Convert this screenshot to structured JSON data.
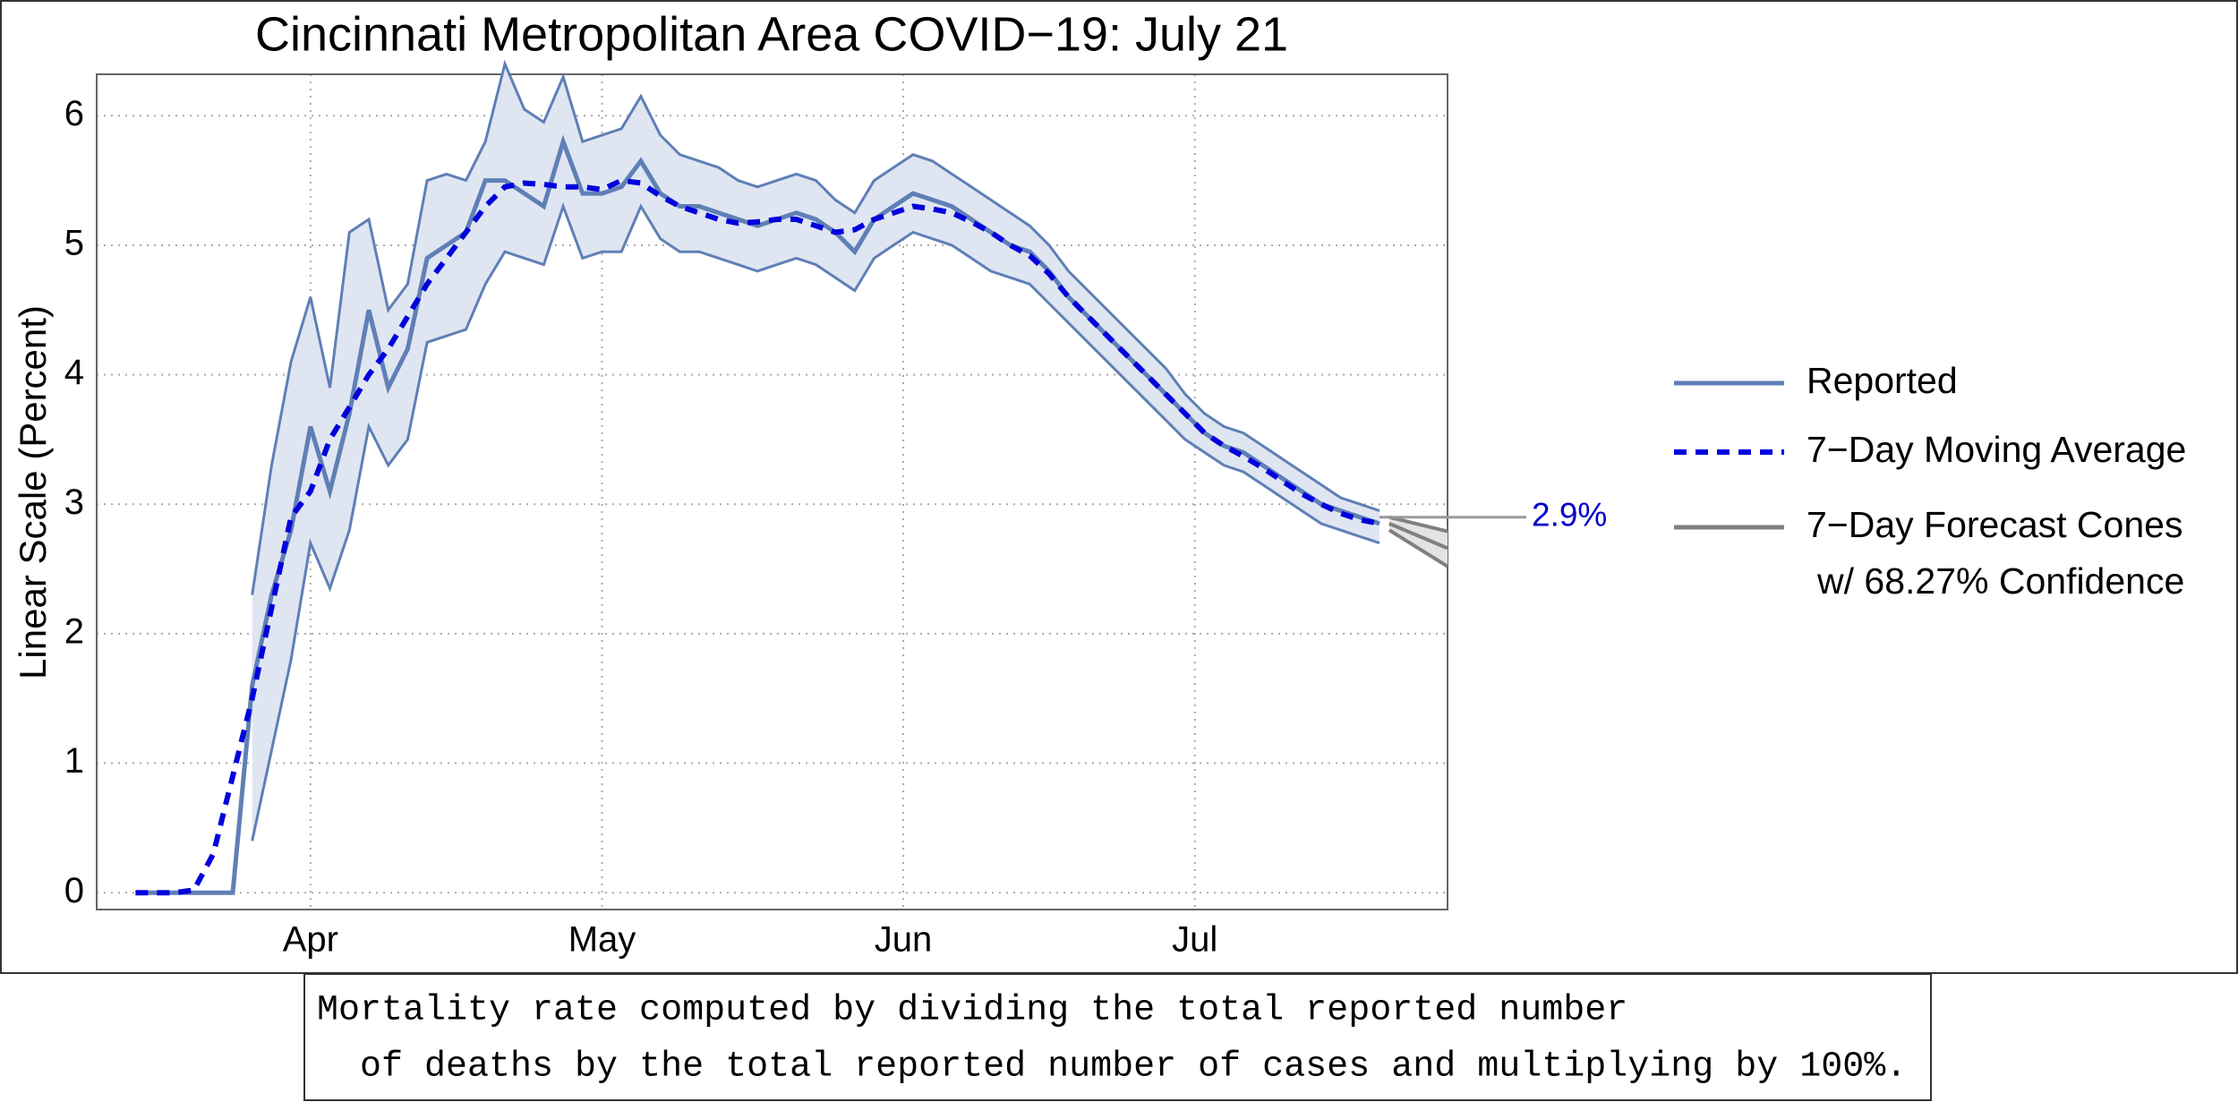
{
  "chart_data": {
    "type": "line",
    "title": "Cincinnati Metropolitan Area COVID−19: July 21",
    "y_label": "Linear Scale (Percent)",
    "x": [
      74,
      76,
      78,
      80,
      82,
      84,
      86,
      88,
      90,
      92,
      94,
      96,
      98,
      100,
      102,
      104,
      106,
      108,
      110,
      112,
      114,
      116,
      118,
      120,
      122,
      124,
      126,
      128,
      130,
      132,
      134,
      136,
      138,
      140,
      142,
      144,
      146,
      148,
      150,
      152,
      154,
      156,
      158,
      160,
      162,
      164,
      166,
      168,
      170,
      172,
      174,
      176,
      178,
      180,
      182,
      184,
      186,
      188,
      190,
      192,
      194,
      196,
      198,
      200,
      202
    ],
    "xlim": [
      70,
      209
    ],
    "xticks": [
      {
        "value": 92,
        "label": "Apr"
      },
      {
        "value": 122,
        "label": "May"
      },
      {
        "value": 153,
        "label": "Jun"
      },
      {
        "value": 183,
        "label": "Jul"
      }
    ],
    "ylim": [
      -0.13,
      6.32
    ],
    "yticks": [
      0,
      1,
      2,
      3,
      4,
      5,
      6
    ],
    "grid": true,
    "series": [
      {
        "name": "Reported",
        "color": "#5f7fb6",
        "values": [
          0,
          0,
          0,
          0,
          0,
          0,
          1.6,
          2.3,
          2.8,
          3.6,
          3.1,
          3.7,
          4.5,
          3.9,
          4.2,
          4.9,
          5.0,
          5.1,
          5.5,
          5.5,
          5.4,
          5.3,
          5.8,
          5.4,
          5.4,
          5.45,
          5.65,
          5.4,
          5.3,
          5.3,
          5.25,
          5.2,
          5.15,
          5.2,
          5.25,
          5.2,
          5.1,
          4.95,
          5.2,
          5.3,
          5.4,
          5.35,
          5.3,
          5.2,
          5.1,
          5.0,
          4.95,
          4.8,
          4.6,
          4.45,
          4.3,
          4.15,
          4.0,
          3.85,
          3.7,
          3.55,
          3.45,
          3.4,
          3.3,
          3.2,
          3.1,
          3.0,
          2.95,
          2.9,
          2.85
        ]
      },
      {
        "name": "7−Day Moving Average",
        "color": "#0000dd",
        "dashed": true,
        "values": [
          0,
          0,
          0,
          0.02,
          0.3,
          0.9,
          1.5,
          2.2,
          2.9,
          3.1,
          3.5,
          3.75,
          4.0,
          4.2,
          4.45,
          4.7,
          4.9,
          5.1,
          5.3,
          5.45,
          5.48,
          5.47,
          5.45,
          5.45,
          5.43,
          5.5,
          5.48,
          5.38,
          5.3,
          5.25,
          5.2,
          5.17,
          5.18,
          5.2,
          5.2,
          5.15,
          5.1,
          5.12,
          5.2,
          5.25,
          5.3,
          5.28,
          5.25,
          5.18,
          5.1,
          5.0,
          4.92,
          4.78,
          4.6,
          4.45,
          4.3,
          4.15,
          4.0,
          3.85,
          3.7,
          3.55,
          3.45,
          3.37,
          3.28,
          3.18,
          3.08,
          3.0,
          2.93,
          2.88,
          2.85
        ]
      }
    ],
    "band": {
      "color": "#5f7fb6",
      "fill": "#dfe6f1",
      "upper": [
        null,
        null,
        null,
        null,
        null,
        null,
        2.3,
        3.3,
        4.1,
        4.6,
        3.9,
        5.1,
        5.2,
        4.5,
        4.7,
        5.5,
        5.55,
        5.5,
        5.8,
        6.4,
        6.05,
        5.95,
        6.3,
        5.8,
        5.85,
        5.9,
        6.15,
        5.85,
        5.7,
        5.65,
        5.6,
        5.5,
        5.45,
        5.5,
        5.55,
        5.5,
        5.35,
        5.25,
        5.5,
        5.6,
        5.7,
        5.65,
        5.55,
        5.45,
        5.35,
        5.25,
        5.15,
        5.0,
        4.8,
        4.65,
        4.5,
        4.35,
        4.2,
        4.05,
        3.85,
        3.7,
        3.6,
        3.55,
        3.45,
        3.35,
        3.25,
        3.15,
        3.05,
        3.0,
        2.95
      ],
      "lower": [
        null,
        null,
        null,
        null,
        null,
        null,
        0.4,
        1.1,
        1.8,
        2.7,
        2.35,
        2.8,
        3.6,
        3.3,
        3.5,
        4.25,
        4.3,
        4.35,
        4.7,
        4.95,
        4.9,
        4.85,
        5.3,
        4.9,
        4.95,
        4.95,
        5.3,
        5.05,
        4.95,
        4.95,
        4.9,
        4.85,
        4.8,
        4.85,
        4.9,
        4.85,
        4.75,
        4.65,
        4.9,
        5.0,
        5.1,
        5.05,
        5.0,
        4.9,
        4.8,
        4.75,
        4.7,
        4.55,
        4.4,
        4.25,
        4.1,
        3.95,
        3.8,
        3.65,
        3.5,
        3.4,
        3.3,
        3.25,
        3.15,
        3.05,
        2.95,
        2.85,
        2.8,
        2.75,
        2.7
      ]
    },
    "forecast": {
      "name_lines": [
        "7−Day Forecast Cones",
        "w/ 68.27% Confidence"
      ],
      "color": "#808080",
      "fill": "#e3e3e3",
      "x": [
        203,
        209
      ],
      "center": [
        2.85,
        2.66
      ],
      "upper": [
        2.9,
        2.79
      ],
      "lower": [
        2.8,
        2.52
      ]
    },
    "annotation": {
      "value": 2.9,
      "label": "2.9%",
      "color": "#0000cc"
    }
  },
  "footnote": [
    "Mortality rate computed by dividing the total reported number",
    "  of deaths by the total reported number of cases and multiplying by 100%."
  ]
}
